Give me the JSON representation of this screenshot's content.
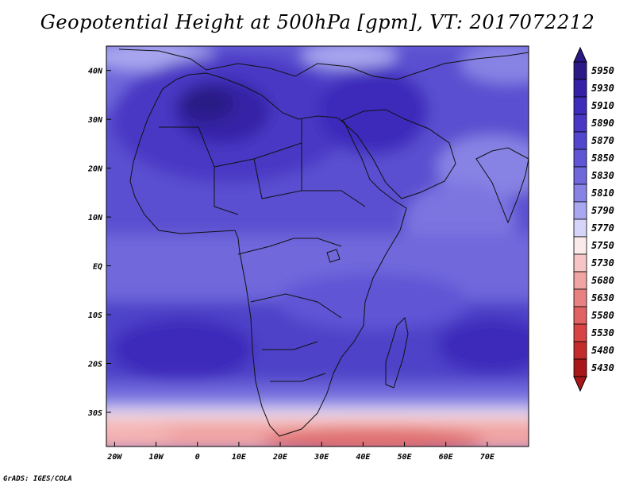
{
  "title": "Geopotential Height at 500hPa [gpm], VT: 2017072212",
  "credit": "GrADS: IGES/COLA",
  "map": {
    "lon_range": [
      -22,
      80
    ],
    "lat_range": [
      -37,
      45
    ],
    "x_ticks": [
      {
        "lon": -20,
        "label": "20W"
      },
      {
        "lon": -10,
        "label": "10W"
      },
      {
        "lon": 0,
        "label": "0"
      },
      {
        "lon": 10,
        "label": "10E"
      },
      {
        "lon": 20,
        "label": "20E"
      },
      {
        "lon": 30,
        "label": "30E"
      },
      {
        "lon": 40,
        "label": "40E"
      },
      {
        "lon": 50,
        "label": "50E"
      },
      {
        "lon": 60,
        "label": "60E"
      },
      {
        "lon": 70,
        "label": "70E"
      }
    ],
    "y_ticks": [
      {
        "lat": 40,
        "label": "40N"
      },
      {
        "lat": 30,
        "label": "30N"
      },
      {
        "lat": 20,
        "label": "20N"
      },
      {
        "lat": 10,
        "label": "10N"
      },
      {
        "lat": 0,
        "label": "EQ"
      },
      {
        "lat": -10,
        "label": "10S"
      },
      {
        "lat": -20,
        "label": "20S"
      },
      {
        "lat": -30,
        "label": "30S"
      }
    ]
  },
  "colorbar": {
    "levels": [
      "5950",
      "5930",
      "5910",
      "5890",
      "5870",
      "5850",
      "5830",
      "5810",
      "5790",
      "5770",
      "5750",
      "5730",
      "5680",
      "5630",
      "5580",
      "5530",
      "5480",
      "5430"
    ],
    "colors": [
      "#2b1a86",
      "#3421a6",
      "#3e2cbb",
      "#4838c4",
      "#5246cd",
      "#5f55d5",
      "#6f68db",
      "#8783e4",
      "#a9a7ef",
      "#d6d5f9",
      "#fbeaea",
      "#f7c5c5",
      "#f0a4a4",
      "#e88282",
      "#e06262",
      "#d84444",
      "#c42c2c",
      "#a81818"
    ]
  }
}
